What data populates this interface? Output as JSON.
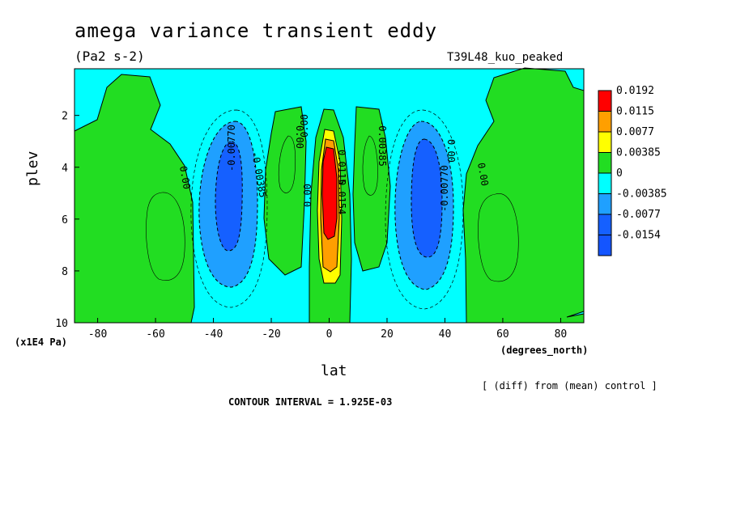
{
  "chart_data": {
    "type": "heatmap",
    "title": "amega variance transient eddy",
    "units": "(Pa2 s-2)",
    "run_label": "T39L48_kuo_peaked",
    "xlabel": "lat",
    "x_unit": "(degrees_north)",
    "ylabel": "plev",
    "y_unit": "(x1E4 Pa)",
    "xlim": [
      -88,
      88
    ],
    "ylim": [
      0.2,
      10
    ],
    "y_inverted": true,
    "x_ticks": [
      "-80",
      "-60",
      "-40",
      "-20",
      "0",
      "20",
      "40",
      "60",
      "80"
    ],
    "y_ticks": [
      "2",
      "4",
      "6",
      "8",
      "10"
    ],
    "diff_note": "[ (diff) from (mean) control ]",
    "contour_interval": "CONTOUR INTERVAL = 1.925E-03",
    "legend": {
      "labels": [
        "0.0192",
        "0.0115",
        "0.0077",
        "0.00385",
        "0",
        "-0.00385",
        "-0.0077",
        "-0.0154"
      ],
      "colors": [
        "#ff0000",
        "#ff9f00",
        "#ffff00",
        "#22dd22",
        "#00ffff",
        "#1fa0ff",
        "#1560ff",
        "#1455ff"
      ]
    },
    "fill_colors": {
      "background": "#00ffff",
      "positive_low": "#22dd22",
      "positive_mid": "#ffff00",
      "positive_high": "#ff9f00",
      "positive_max": "#ff0000",
      "negative_low": "#1fa0ff",
      "negative_mid": "#1560ff"
    },
    "contour_labels": [
      "0.00",
      "-0.00770",
      "-0.00385",
      "0.00",
      "0.00",
      "0.00",
      "-0.00385",
      "-0.00770",
      "0.00",
      "0.00",
      "0.0115",
      "0.0154"
    ]
  }
}
